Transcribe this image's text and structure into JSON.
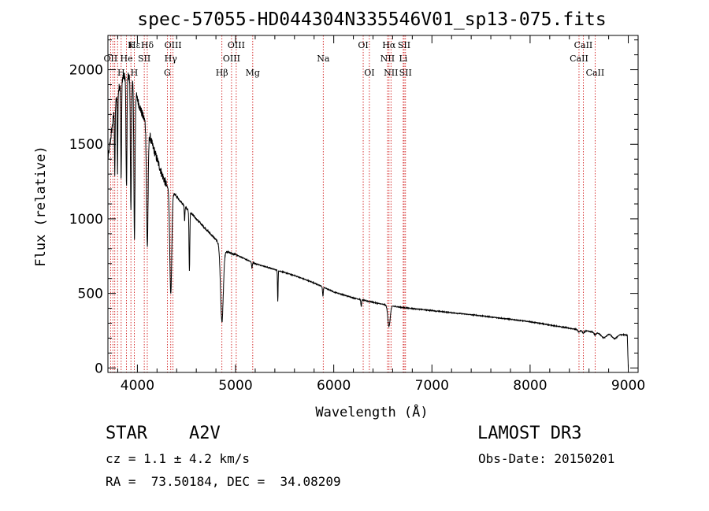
{
  "chart_data": {
    "type": "line",
    "title": "spec-57055-HD044304N335546V01_sp13-075.fits",
    "xlabel": "Wavelength (Å)",
    "ylabel": "Flux (relative)",
    "xlim": [
      3700,
      9100
    ],
    "ylim": [
      -30,
      2230
    ],
    "x_ticks": [
      4000,
      5000,
      6000,
      7000,
      8000,
      9000
    ],
    "y_ticks": [
      0,
      500,
      1000,
      1500,
      2000
    ],
    "grid": false,
    "line_color": "#000000",
    "marker_color": "#cc0000",
    "continuum": [
      [
        3700,
        1400
      ],
      [
        3760,
        1700
      ],
      [
        3800,
        1850
      ],
      [
        3850,
        1950
      ],
      [
        3900,
        1960
      ],
      [
        3950,
        1930
      ],
      [
        4000,
        1800
      ],
      [
        4050,
        1700
      ],
      [
        4100,
        1620
      ],
      [
        4150,
        1500
      ],
      [
        4200,
        1400
      ],
      [
        4250,
        1300
      ],
      [
        4300,
        1220
      ],
      [
        4400,
        1150
      ],
      [
        4500,
        1070
      ],
      [
        4600,
        1000
      ],
      [
        4700,
        930
      ],
      [
        4800,
        860
      ],
      [
        4900,
        780
      ],
      [
        5000,
        760
      ],
      [
        5200,
        700
      ],
      [
        5400,
        660
      ],
      [
        5600,
        620
      ],
      [
        5800,
        570
      ],
      [
        6000,
        510
      ],
      [
        6200,
        470
      ],
      [
        6400,
        440
      ],
      [
        6550,
        420
      ],
      [
        6700,
        405
      ],
      [
        7000,
        385
      ],
      [
        7500,
        350
      ],
      [
        8000,
        310
      ],
      [
        8500,
        255
      ],
      [
        8700,
        235
      ],
      [
        9000,
        220
      ]
    ],
    "absorption_lines": [
      {
        "wl": 3770,
        "depth": 450,
        "width": 3
      },
      {
        "wl": 3798,
        "depth": 520,
        "width": 3
      },
      {
        "wl": 3835,
        "depth": 650,
        "width": 4
      },
      {
        "wl": 3889,
        "depth": 750,
        "width": 5
      },
      {
        "wl": 3934,
        "depth": 900,
        "width": 5
      },
      {
        "wl": 3970,
        "depth": 1000,
        "width": 6
      },
      {
        "wl": 4101,
        "depth": 800,
        "width": 8
      },
      {
        "wl": 4340,
        "depth": 700,
        "width": 10
      },
      {
        "wl": 4481,
        "depth": 100,
        "width": 3
      },
      {
        "wl": 4530,
        "depth": 400,
        "width": 4
      },
      {
        "wl": 4861,
        "depth": 500,
        "width": 14
      },
      {
        "wl": 5167,
        "depth": 40,
        "width": 4
      },
      {
        "wl": 5430,
        "depth": 210,
        "width": 3
      },
      {
        "wl": 5890,
        "depth": 60,
        "width": 4
      },
      {
        "wl": 6280,
        "depth": 45,
        "width": 4
      },
      {
        "wl": 6563,
        "depth": 140,
        "width": 12
      },
      {
        "wl": 8498,
        "depth": 15,
        "width": 10
      },
      {
        "wl": 8542,
        "depth": 18,
        "width": 10
      },
      {
        "wl": 8662,
        "depth": 18,
        "width": 10
      },
      {
        "wl": 8750,
        "depth": 30,
        "width": 25
      },
      {
        "wl": 8860,
        "depth": 30,
        "width": 25
      }
    ],
    "line_markers": [
      {
        "label": "Hε",
        "wl": 3970,
        "row": 0
      },
      {
        "label": "K",
        "wl": 3934,
        "row": 0
      },
      {
        "label": "Hδ",
        "wl": 4101,
        "row": 0
      },
      {
        "label": "OIII",
        "wl": 4363,
        "row": 0
      },
      {
        "label": "OIII",
        "wl": 5007,
        "row": 0
      },
      {
        "label": "OI",
        "wl": 6300,
        "row": 0
      },
      {
        "label": "Hα",
        "wl": 6563,
        "row": 0
      },
      {
        "label": "SII",
        "wl": 6717,
        "row": 0
      },
      {
        "label": "CaII",
        "wl": 8542,
        "row": 0
      },
      {
        "label": "OII",
        "wl": 3727,
        "row": 1
      },
      {
        "label": "He",
        "wl": 3889,
        "row": 1
      },
      {
        "label": "SII",
        "wl": 4070,
        "row": 1
      },
      {
        "label": "Hγ",
        "wl": 4340,
        "row": 1
      },
      {
        "label": "OIII",
        "wl": 4959,
        "row": 1
      },
      {
        "label": "Na",
        "wl": 5893,
        "row": 1
      },
      {
        "label": "NII",
        "wl": 6548,
        "row": 1
      },
      {
        "label": "Li",
        "wl": 6708,
        "row": 1
      },
      {
        "label": "CaII",
        "wl": 8498,
        "row": 1
      },
      {
        "label": "H",
        "wl": 3835,
        "row": 2
      },
      {
        "label": "H",
        "wl": 3968,
        "row": 2
      },
      {
        "label": "G",
        "wl": 4305,
        "row": 2
      },
      {
        "label": "Hβ",
        "wl": 4861,
        "row": 2
      },
      {
        "label": "Mg",
        "wl": 5175,
        "row": 2
      },
      {
        "label": "OI",
        "wl": 6363,
        "row": 2
      },
      {
        "label": "NII",
        "wl": 6583,
        "row": 2
      },
      {
        "label": "SII",
        "wl": 6731,
        "row": 2
      },
      {
        "label": "CaII",
        "wl": 8662,
        "row": 2
      }
    ],
    "marker_lines": [
      3727,
      3750,
      3770,
      3798,
      3835,
      3889,
      3934,
      3968,
      4070,
      4101,
      4305,
      4340,
      4363,
      4861,
      4959,
      5007,
      5175,
      5893,
      6300,
      6363,
      6548,
      6563,
      6583,
      6708,
      6717,
      6731,
      8498,
      8542,
      8662
    ]
  },
  "info": {
    "object_class": "STAR",
    "subclass": "A2V",
    "survey": "LAMOST DR3",
    "redshift": "cz = 1.1 ± 4.2 km/s",
    "obs_date": "Obs-Date: 20150201",
    "coords": "RA =  73.50184, DEC =  34.08209"
  }
}
